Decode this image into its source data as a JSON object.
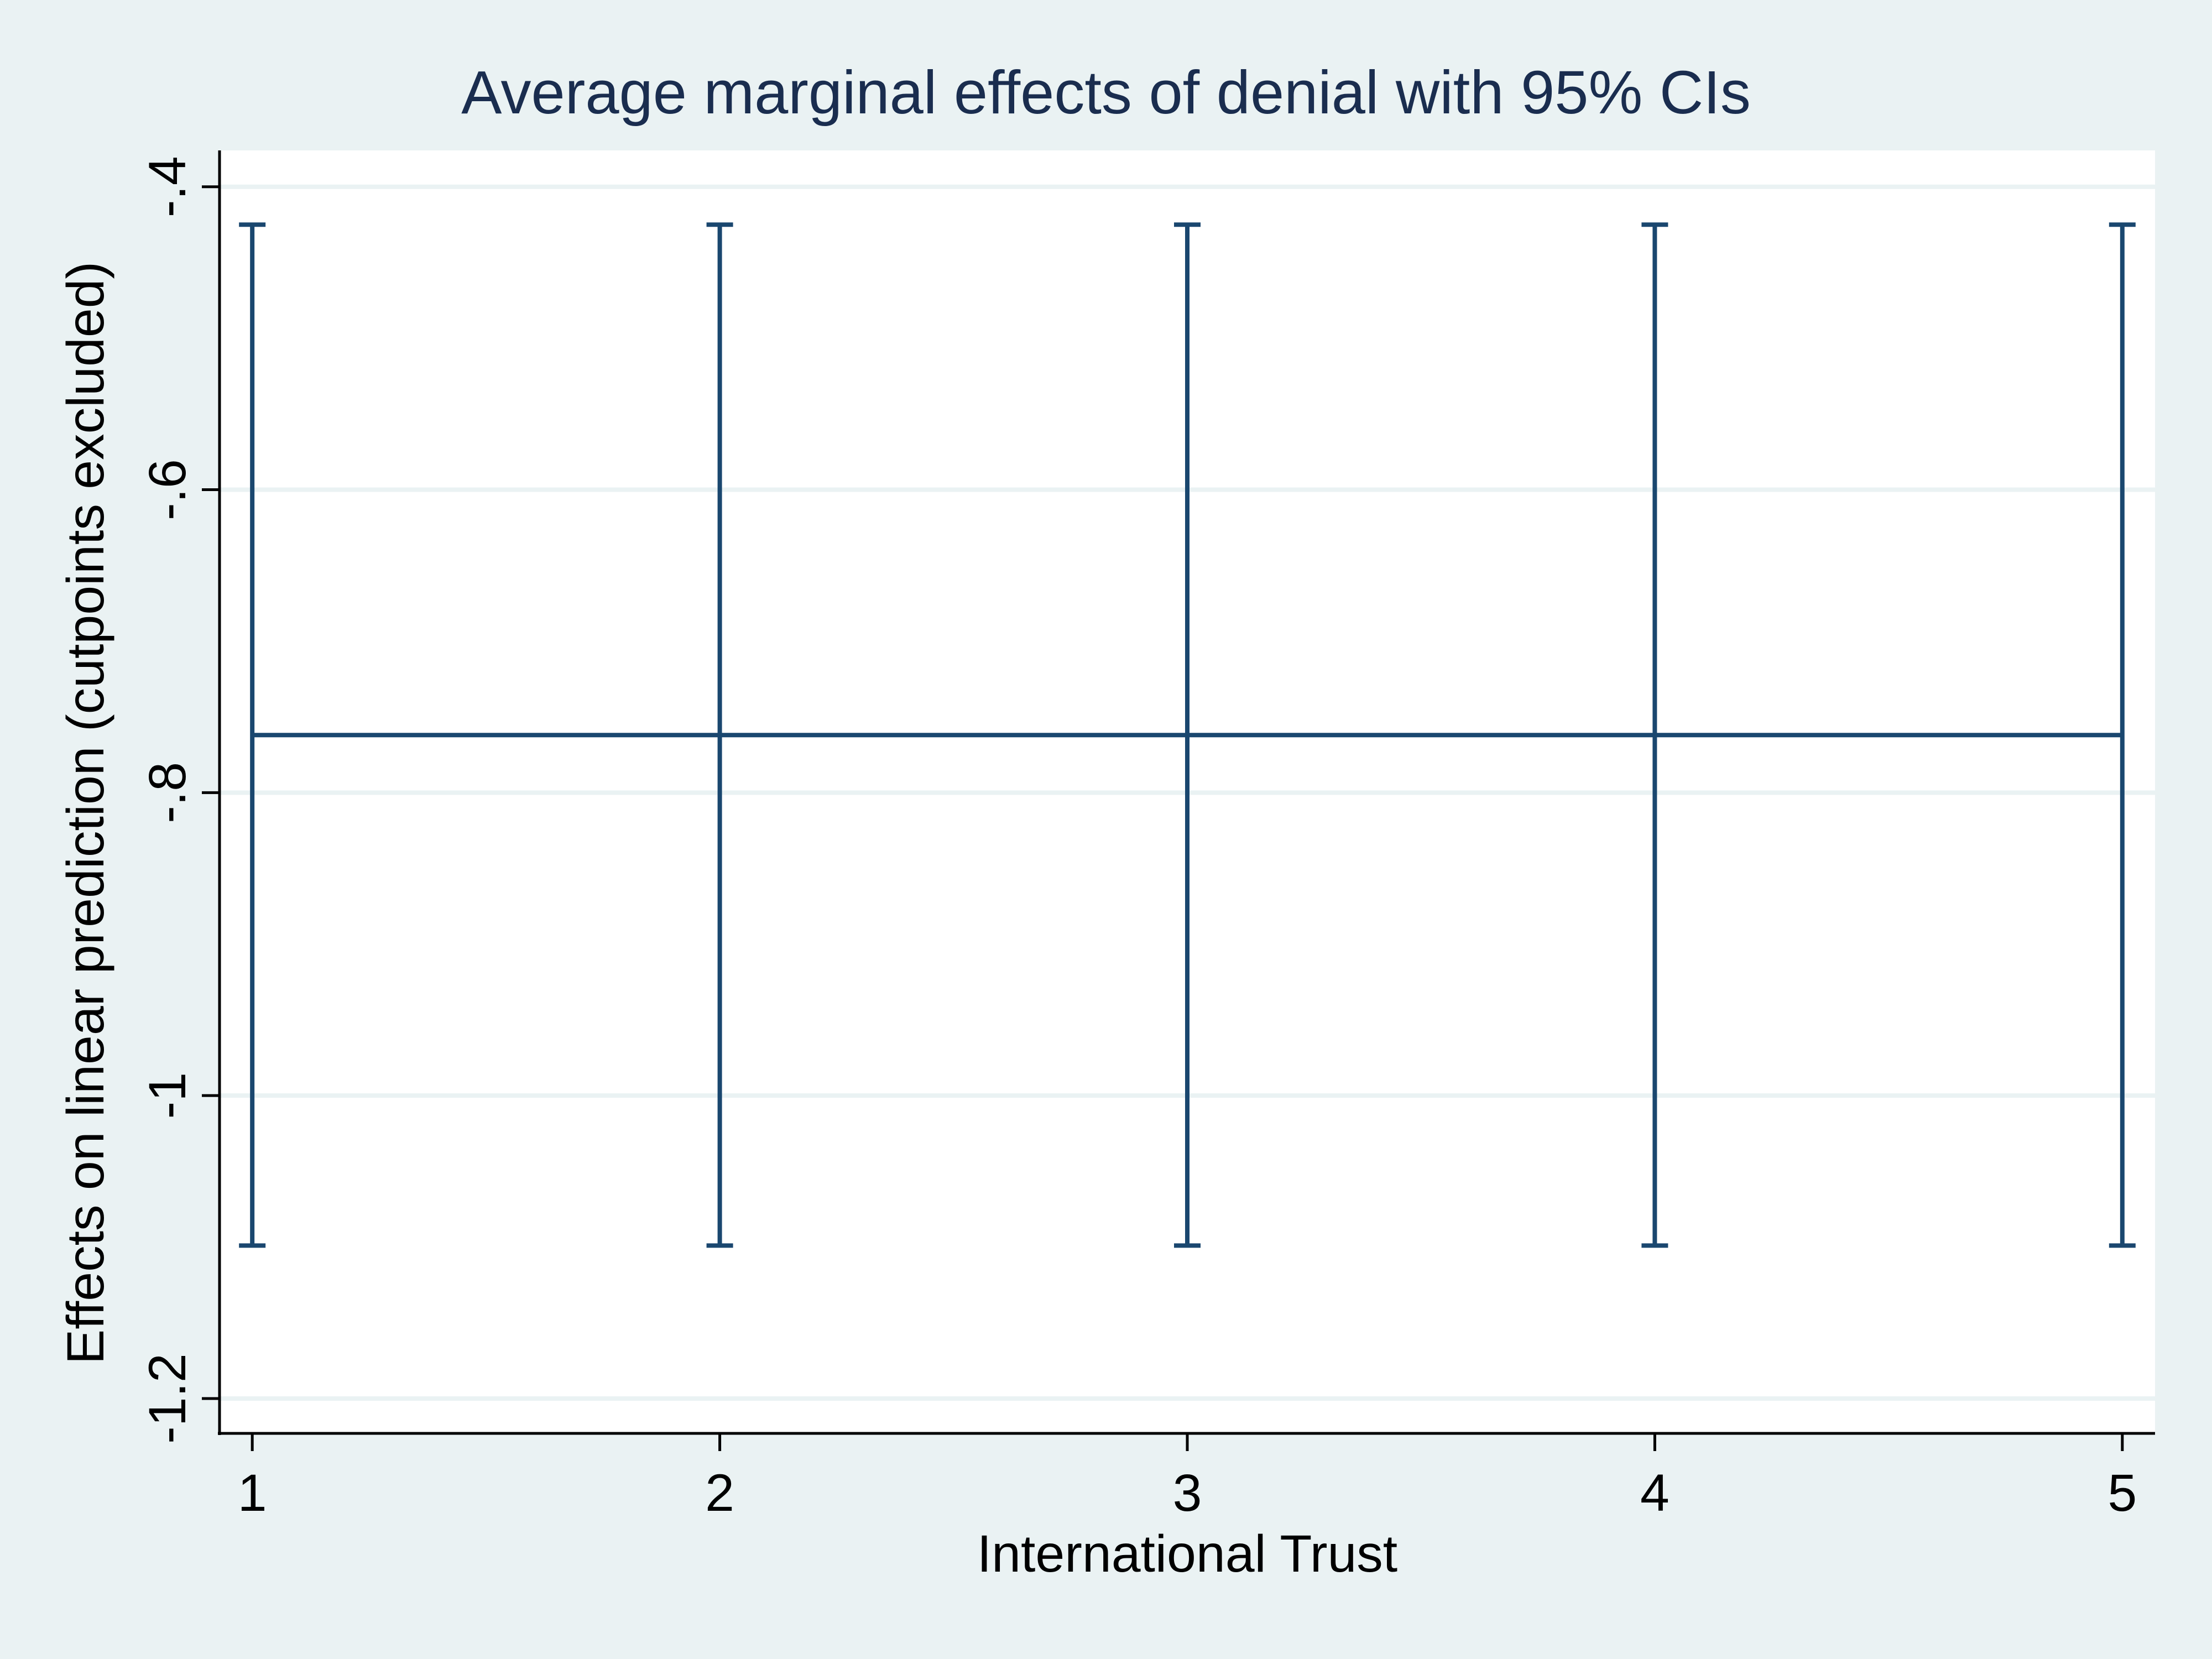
{
  "chart_data": {
    "type": "line",
    "title": "Average marginal effects of denial with 95% CIs",
    "xlabel": "International Trust",
    "ylabel": "Effects on linear prediction (cutpoints excluded)",
    "x": [
      1,
      2,
      3,
      4,
      5
    ],
    "series": [
      {
        "values": [
          -0.762,
          -0.762,
          -0.762,
          -0.762,
          -0.762
        ],
        "ci_lower": [
          -1.099,
          -1.099,
          -1.099,
          -1.099,
          -1.099
        ],
        "ci_upper": [
          -0.425,
          -0.425,
          -0.425,
          -0.425,
          -0.425
        ]
      }
    ],
    "x_ticks": [
      "1",
      "2",
      "3",
      "4",
      "5"
    ],
    "y_ticks": [
      "-.4",
      "-.6",
      "-.8",
      "-1",
      "-1.2"
    ],
    "y_tick_values": [
      -0.4,
      -0.6,
      -0.8,
      -1.0,
      -1.2
    ],
    "xlim": [
      0.93,
      5.07
    ],
    "ylim": [
      -1.223,
      -0.376
    ],
    "grid": true,
    "legend": "none",
    "colors": {
      "series": "#1a476f",
      "background": "#eaf2f3",
      "plot_background": "#ffffff",
      "grid": "#eaf2f3",
      "title": "#1a2d4f"
    }
  }
}
